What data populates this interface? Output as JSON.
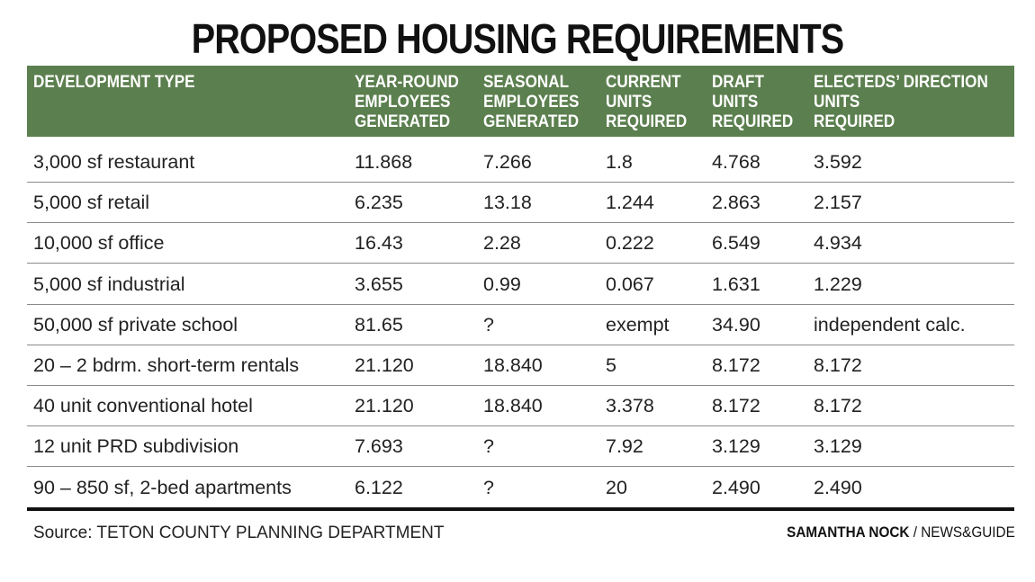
{
  "chart_data": {
    "type": "table",
    "title": "PROPOSED HOUSING REQUIREMENTS",
    "header_color": "#5b7f4e",
    "columns": [
      "DEVELOPMENT TYPE",
      "YEAR-ROUND\nEMPLOYEES\nGENERATED",
      "SEASONAL\nEMPLOYEES\nGENERATED",
      "CURRENT\nUNITS\nREQUIRED",
      "DRAFT\nUNITS\nREQUIRED",
      "ELECTEDS’ DIRECTION\nUNITS\nREQUIRED"
    ],
    "rows": [
      [
        "3,000 sf restaurant",
        "11.868",
        "7.266",
        "1.8",
        "4.768",
        "3.592"
      ],
      [
        "5,000 sf retail",
        "6.235",
        "13.18",
        "1.244",
        "2.863",
        "2.157"
      ],
      [
        "10,000 sf office",
        "16.43",
        "2.28",
        "0.222",
        "6.549",
        "4.934"
      ],
      [
        "5,000 sf industrial",
        "3.655",
        "0.99",
        "0.067",
        "1.631",
        "1.229"
      ],
      [
        "50,000 sf private school",
        "81.65",
        "?",
        "exempt",
        "34.90",
        "independent calc."
      ],
      [
        "20 – 2 bdrm. short-term rentals",
        "21.120",
        "18.840",
        "5",
        "8.172",
        "8.172"
      ],
      [
        "40 unit conventional hotel",
        "21.120",
        "18.840",
        "3.378",
        "8.172",
        "8.172"
      ],
      [
        "12 unit PRD subdivision",
        "7.693",
        "?",
        "7.92",
        "3.129",
        "3.129"
      ],
      [
        "90 – 850 sf, 2-bed apartments",
        "6.122",
        "?",
        "20",
        "2.490",
        "2.490"
      ]
    ],
    "source": "Source: TETON COUNTY PLANNING DEPARTMENT",
    "credit_author": "SAMANTHA NOCK",
    "credit_separator": " / ",
    "credit_outlet": "NEWS&GUIDE"
  }
}
